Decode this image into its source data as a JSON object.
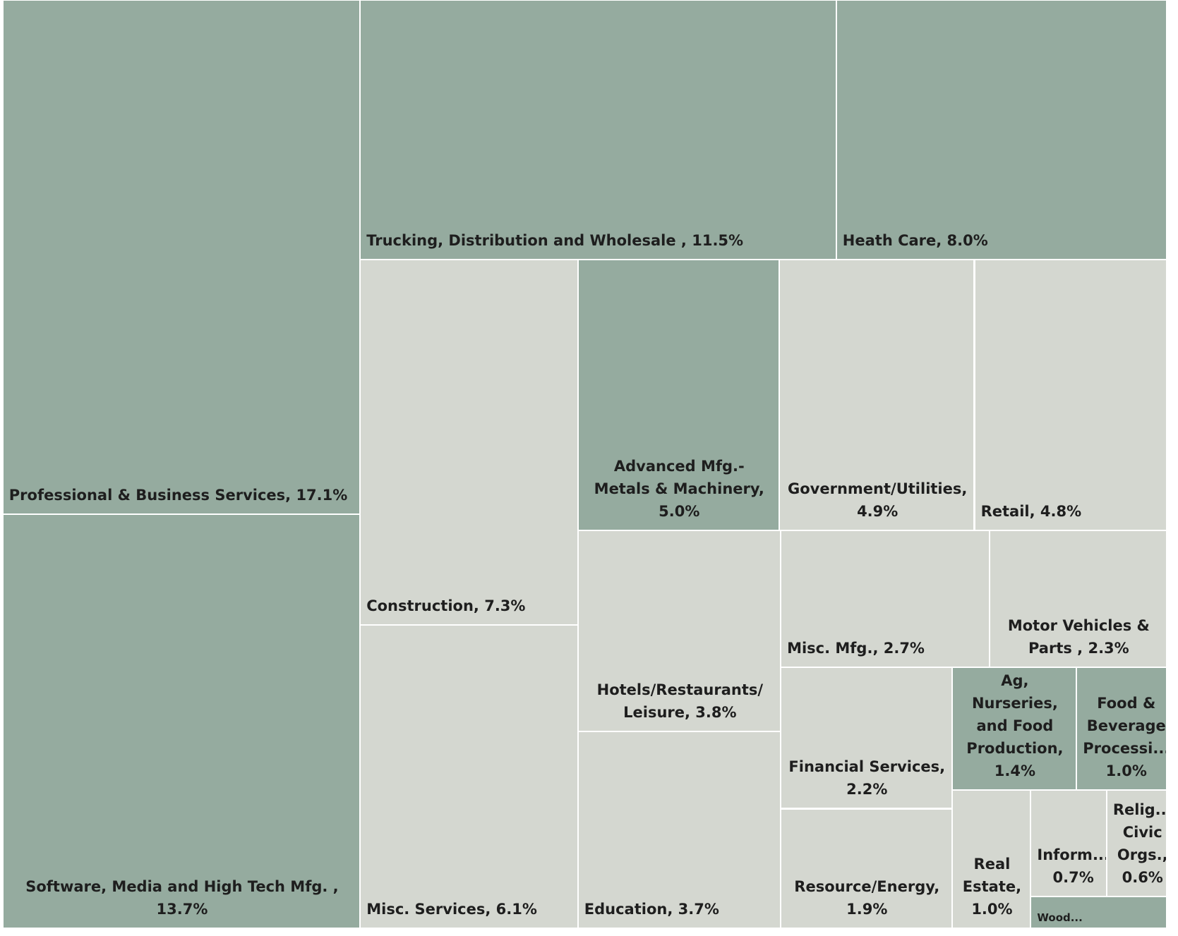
{
  "chart_data": {
    "type": "treemap",
    "labels": [
      "Professional & Business Services, 17.1%",
      "Software, Media and High Tech Mfg. , 13.7%",
      "Trucking, Distribution and Wholesale , 11.5%",
      "Heath Care, 8.0%",
      "Construction, 7.3%",
      "Misc. Services, 6.1%",
      "Advanced Mfg.- Metals & Machinery, 5.0%",
      "Government/Utilities, 4.9%",
      "Retail, 4.8%",
      "Hotels/Restaurants/ Leisure, 3.8%",
      "Education, 3.7%",
      "Misc. Mfg., 2.7%",
      "Motor Vehicles & Parts , 2.3%",
      "Financial Services, 2.2%",
      "Resource/Energy, 1.9%",
      "Ag, Nurseries, and Food Production, 1.4%",
      "Food & Beverage Processi... 1.0%",
      "Real Estate, 1.0%",
      "Inform... 0.7%",
      "Relig... Civic Orgs., 0.6%",
      "Wood..."
    ],
    "values": [
      17.1,
      13.7,
      11.5,
      8.0,
      7.3,
      6.1,
      5.0,
      4.9,
      4.8,
      3.8,
      3.7,
      2.7,
      2.3,
      2.2,
      1.9,
      1.4,
      1.0,
      1.0,
      0.7,
      0.6,
      0.4
    ],
    "colors": [
      "#95ab9f",
      "#95ab9f",
      "#95ab9f",
      "#95ab9f",
      "#d4d7d0",
      "#d4d7d0",
      "#95ab9f",
      "#d4d7d0",
      "#d4d7d0",
      "#d4d7d0",
      "#d4d7d0",
      "#d4d7d0",
      "#d4d7d0",
      "#d4d7d0",
      "#d4d7d0",
      "#95ab9f",
      "#95ab9f",
      "#d4d7d0",
      "#d4d7d0",
      "#d4d7d0",
      "#95ab9f"
    ]
  }
}
